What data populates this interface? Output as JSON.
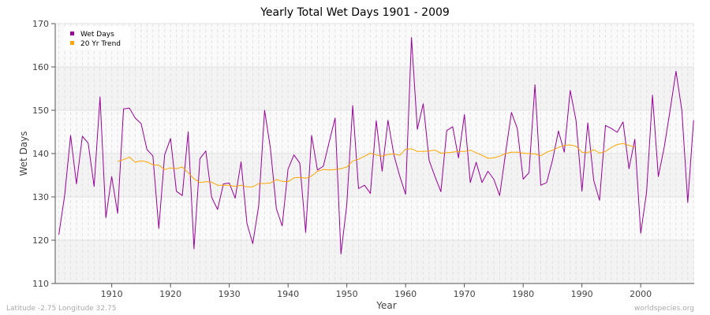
{
  "chart_data": {
    "type": "line",
    "title": "Yearly Total Wet Days 1901 - 2009",
    "xlabel": "Year",
    "ylabel": "Wet Days",
    "xlim": [
      1901,
      2009
    ],
    "ylim": [
      110,
      170
    ],
    "x_ticks": [
      1910,
      1920,
      1930,
      1940,
      1950,
      1960,
      1970,
      1980,
      1990,
      2000
    ],
    "y_ticks": [
      110,
      120,
      130,
      140,
      150,
      160,
      170
    ],
    "grid": true,
    "legend_position": "top-left",
    "series": [
      {
        "name": "Wet Days",
        "color": "#990099",
        "start_year": 1901,
        "values": [
          121.3,
          130.4,
          144.2,
          133,
          144,
          142.4,
          132.4,
          153.1,
          125.2,
          134.7,
          126.2,
          150.3,
          150.5,
          148.2,
          146.9,
          140.9,
          139.5,
          122.7,
          139.7,
          143.5,
          131.3,
          130.3,
          145,
          118,
          138.8,
          140.6,
          129.9,
          127.1,
          133,
          133.2,
          129.7,
          138.1,
          123.9,
          119.2,
          127.9,
          150,
          141.2,
          127.3,
          123.3,
          136.4,
          139.7,
          137.8,
          121.8,
          144.2,
          136.2,
          137.1,
          142.7,
          148.2,
          116.8,
          128.2,
          151.1,
          131.9,
          132.7,
          130.8,
          147.6,
          135.9,
          147.7,
          139.7,
          134.8,
          130.6,
          166.8,
          145.6,
          151.5,
          138.4,
          134.7,
          131.2,
          145.3,
          146.2,
          139,
          149,
          133.3,
          138,
          133.3,
          135.9,
          134.1,
          130.3,
          140,
          149.5,
          145.8,
          134.1,
          135.6,
          155.9,
          132.7,
          133.3,
          138.5,
          145.2,
          140.3,
          154.6,
          147.6,
          131.3,
          147.1,
          133.8,
          129.2,
          146.5,
          145.8,
          144.9,
          147.3,
          136.5,
          143.3,
          121.6,
          131.1,
          153.5,
          134.7,
          141.5,
          150,
          159,
          150,
          128.7,
          147.7
        ]
      },
      {
        "name": "20 Yr Trend",
        "color": "#ffa500",
        "start_year": 1911,
        "values": [
          138.2,
          138.6,
          139.2,
          138,
          138.3,
          138.1,
          137.4,
          137.3,
          136.3,
          136.7,
          136.5,
          136.9,
          135.6,
          134.2,
          133.3,
          133.5,
          133.4,
          132.7,
          132.7,
          132.7,
          132.4,
          132.7,
          132.3,
          132.3,
          133.1,
          133.1,
          133.2,
          134,
          133.6,
          133.5,
          134.4,
          134.5,
          134.3,
          134.8,
          135.9,
          136.3,
          136.2,
          136.3,
          136.5,
          136.9,
          138.3,
          138.7,
          139.4,
          140.1,
          139.7,
          139.4,
          139.8,
          139.9,
          139.6,
          141,
          141.1,
          140.5,
          140.5,
          140.6,
          140.8,
          140.1,
          140.2,
          140.3,
          140.5,
          140.5,
          140.8,
          140.2,
          139.6,
          138.9,
          139,
          139.4,
          140,
          140.3,
          140.3,
          140.1,
          140,
          139.9,
          139.5,
          140.3,
          140.8,
          141.4,
          141.9,
          142,
          141.7,
          140.3,
          140.2,
          140.9,
          140.1,
          140.5,
          141.4,
          142.1,
          142.3,
          141.9,
          141.5
        ]
      }
    ]
  },
  "footer": {
    "location": "Latitude -2.75 Longitude 32.75",
    "source": "worldspecies.org"
  }
}
